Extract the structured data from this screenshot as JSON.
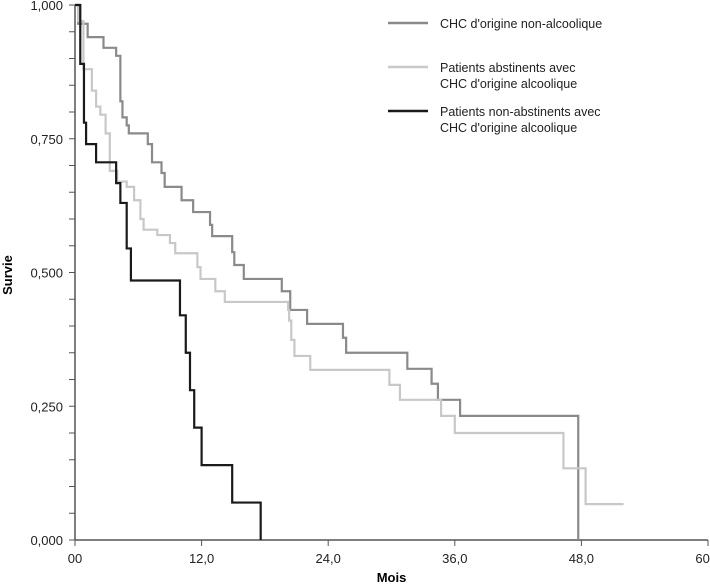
{
  "chart_data": {
    "type": "line",
    "subtype": "kaplan-meier step",
    "xlabel": "Mois",
    "ylabel": "Survie",
    "xlim": [
      0,
      60
    ],
    "ylim": [
      0,
      1
    ],
    "xticks": [
      "00",
      "12,0",
      "24,0",
      "36,0",
      "48,0",
      "60,0"
    ],
    "xtick_values": [
      0,
      12,
      24,
      36,
      48,
      60
    ],
    "yticks": [
      "0,000",
      "0,250",
      "0,500",
      "0,750",
      "1,000"
    ],
    "ytick_values": [
      0,
      0.25,
      0.5,
      0.75,
      1
    ],
    "legend_position": "top-right",
    "series": [
      {
        "name": "CHC d'origine non-alcoolique",
        "legend_lines": [
          "CHC d'origine non-alcoolique"
        ],
        "color": "#8a8a8a",
        "steps": [
          [
            0,
            1
          ],
          [
            0.3,
            0.965
          ],
          [
            1.2,
            0.94
          ],
          [
            2.7,
            0.92
          ],
          [
            3.9,
            0.905
          ],
          [
            4.3,
            0.82
          ],
          [
            4.5,
            0.79
          ],
          [
            4.9,
            0.775
          ],
          [
            5.1,
            0.76
          ],
          [
            6.9,
            0.74
          ],
          [
            7.3,
            0.706
          ],
          [
            8.2,
            0.686
          ],
          [
            8.5,
            0.66
          ],
          [
            10.1,
            0.635
          ],
          [
            11.2,
            0.613
          ],
          [
            12.8,
            0.589
          ],
          [
            13.0,
            0.568
          ],
          [
            14.9,
            0.538
          ],
          [
            15.1,
            0.514
          ],
          [
            16.0,
            0.488
          ],
          [
            19.6,
            0.465
          ],
          [
            20.4,
            0.43
          ],
          [
            22.0,
            0.404
          ],
          [
            25.4,
            0.378
          ],
          [
            25.7,
            0.35
          ],
          [
            31.5,
            0.32
          ],
          [
            33.8,
            0.292
          ],
          [
            34.4,
            0.262
          ],
          [
            36.5,
            0.232
          ],
          [
            47.7,
            0
          ]
        ],
        "end": 47.7
      },
      {
        "name": "Patients abstinents avec CHC d'origine alcoolique",
        "legend_lines": [
          "Patients abstinents avec",
          "CHC d'origine alcoolique"
        ],
        "color": "#c8c8c8",
        "steps": [
          [
            0,
            1
          ],
          [
            0.3,
            0.97
          ],
          [
            0.8,
            0.88
          ],
          [
            1.6,
            0.84
          ],
          [
            2.0,
            0.81
          ],
          [
            2.4,
            0.795
          ],
          [
            2.9,
            0.76
          ],
          [
            3.3,
            0.69
          ],
          [
            4.0,
            0.67
          ],
          [
            4.9,
            0.66
          ],
          [
            5.6,
            0.635
          ],
          [
            6.2,
            0.6
          ],
          [
            6.5,
            0.58
          ],
          [
            7.8,
            0.57
          ],
          [
            9.0,
            0.555
          ],
          [
            9.5,
            0.536
          ],
          [
            11.6,
            0.51
          ],
          [
            11.9,
            0.488
          ],
          [
            13.3,
            0.465
          ],
          [
            14.2,
            0.445
          ],
          [
            20.2,
            0.43
          ],
          [
            20.3,
            0.41
          ],
          [
            20.5,
            0.374
          ],
          [
            20.8,
            0.344
          ],
          [
            22.3,
            0.318
          ],
          [
            29.8,
            0.29
          ],
          [
            30.8,
            0.262
          ],
          [
            34.7,
            0.232
          ],
          [
            36.0,
            0.2
          ],
          [
            46.3,
            0.134
          ],
          [
            48.4,
            0.067
          ]
        ],
        "end": 52.0
      },
      {
        "name": "Patients non-abstinents avec CHC d'origine alcoolique",
        "legend_lines": [
          "Patients non-abstinents avec",
          "CHC d'origine alcoolique"
        ],
        "color": "#1a1a1a",
        "steps": [
          [
            0,
            1
          ],
          [
            0.5,
            0.89
          ],
          [
            0.85,
            0.78
          ],
          [
            1.05,
            0.74
          ],
          [
            2.0,
            0.706
          ],
          [
            3.9,
            0.667
          ],
          [
            4.3,
            0.63
          ],
          [
            4.9,
            0.545
          ],
          [
            5.3,
            0.485
          ],
          [
            9.95,
            0.42
          ],
          [
            10.5,
            0.35
          ],
          [
            10.9,
            0.28
          ],
          [
            11.3,
            0.21
          ],
          [
            12.0,
            0.14
          ],
          [
            14.9,
            0.07
          ],
          [
            17.6,
            0
          ]
        ],
        "end": 17.6
      }
    ]
  }
}
